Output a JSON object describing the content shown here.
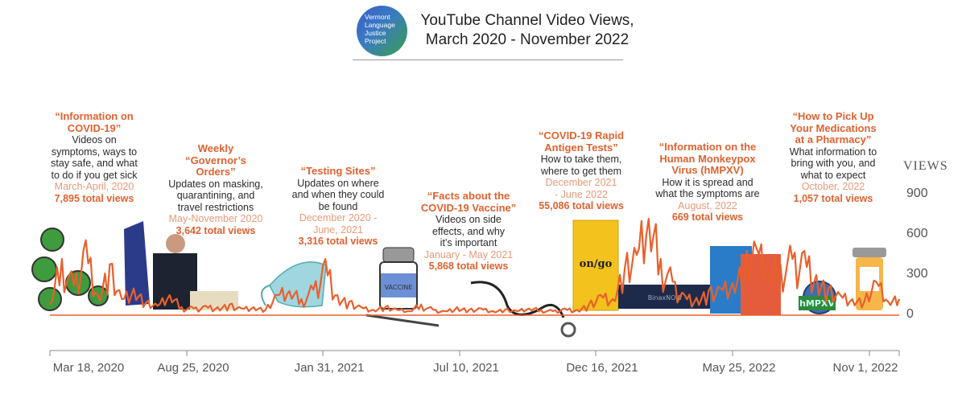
{
  "header": {
    "logo_text": "Vermont Language Justice Project",
    "title_line1": "YouTube Channel Video Views,",
    "title_line2": "March 2020 - November 2022"
  },
  "annotations": [
    {
      "title": "“Information on COVID-19”",
      "body": "Videos on symptoms, ways to stay safe, and what to do if you get sick",
      "dates": "March-April, 2020",
      "views": "7,895 total views"
    },
    {
      "title": "Weekly “Governor’s Orders”",
      "body": "Updates on masking, quarantining, and travel restrictions",
      "dates": "May-November 2020",
      "views": "3,642 total views"
    },
    {
      "title": "“Testing Sites”",
      "body": "Updates on where and when they could be found",
      "dates": "December 2020 - June, 2021",
      "views": "3,316 total views"
    },
    {
      "title": "“Facts about the COVID-19 Vaccine”",
      "body": "Videos on side effects, and why it’s important",
      "dates": "January - May 2021",
      "views": "5,868 total views"
    },
    {
      "title": "“COVID-19 Rapid Antigen Tests”",
      "body": "How to take them, where to get them",
      "dates": "December 2021 - June 2022",
      "views": "55,086 total views"
    },
    {
      "title": "“Information on the Human Monkeypox Virus (hMPXV)",
      "body": "How it is spread and what the symptoms are",
      "dates": "August, 2022",
      "views": "669 total views"
    },
    {
      "title": "“How to Pick Up Your Medications at a Pharmacy”",
      "body": "What information to bring with you, and what to expect",
      "dates": "October, 2022",
      "views": "1,057 total views"
    }
  ],
  "illustration_labels": {
    "vaccine": "VACCINE",
    "ongo": "on/go",
    "binax": "BinaxNOW",
    "hmpxv": "hMPXV"
  },
  "colors": {
    "line": "#e8602c",
    "accent": "#e0622f",
    "dates": "#e89a78",
    "axis": "#888888"
  },
  "chart_data": {
    "type": "line",
    "title": "YouTube Channel Video Views, March 2020 - November 2022",
    "ylabel": "VIEWS",
    "ylim": [
      0,
      900
    ],
    "yticks": [
      "0",
      "300",
      "600",
      "900"
    ],
    "xticks": [
      "Mar 18, 2020",
      "Aug 25, 2020",
      "Jan 31, 2021",
      "Jul 10, 2021",
      "Dec 16, 2021",
      "May 25, 2022",
      "Nov 1, 2022"
    ],
    "xtick_dates": [
      "2020-03-18",
      "2020-08-25",
      "2021-01-31",
      "2021-07-10",
      "2021-12-16",
      "2022-05-25",
      "2022-11-01"
    ],
    "grid": false,
    "x": [
      "2020-03-18",
      "2020-04-01",
      "2020-04-15",
      "2020-04-29",
      "2020-05-13",
      "2020-05-27",
      "2020-06-10",
      "2020-06-24",
      "2020-07-08",
      "2020-07-22",
      "2020-08-05",
      "2020-08-19",
      "2020-09-02",
      "2020-09-16",
      "2020-09-30",
      "2020-10-14",
      "2020-10-28",
      "2020-11-11",
      "2020-11-25",
      "2020-12-09",
      "2020-12-23",
      "2021-01-06",
      "2021-01-20",
      "2021-02-03",
      "2021-02-17",
      "2021-03-03",
      "2021-03-17",
      "2021-03-31",
      "2021-04-14",
      "2021-04-28",
      "2021-05-12",
      "2021-05-26",
      "2021-06-09",
      "2021-06-23",
      "2021-07-07",
      "2021-07-21",
      "2021-08-04",
      "2021-08-18",
      "2021-09-01",
      "2021-09-15",
      "2021-09-29",
      "2021-10-13",
      "2021-10-27",
      "2021-11-10",
      "2021-11-24",
      "2021-12-08",
      "2021-12-22",
      "2022-01-05",
      "2022-01-19",
      "2022-02-02",
      "2022-02-16",
      "2022-03-02",
      "2022-03-16",
      "2022-03-30",
      "2022-04-13",
      "2022-04-27",
      "2022-05-11",
      "2022-05-25",
      "2022-06-08",
      "2022-06-22",
      "2022-07-06",
      "2022-07-20",
      "2022-08-03",
      "2022-08-17",
      "2022-08-31",
      "2022-09-14",
      "2022-09-28",
      "2022-10-12",
      "2022-10-26",
      "2022-11-09",
      "2022-11-23",
      "2022-12-06"
    ],
    "y": [
      80,
      420,
      220,
      560,
      150,
      380,
      120,
      200,
      90,
      70,
      150,
      60,
      50,
      70,
      60,
      80,
      50,
      60,
      40,
      150,
      180,
      120,
      190,
      420,
      150,
      100,
      60,
      40,
      60,
      40,
      30,
      80,
      40,
      30,
      60,
      40,
      50,
      30,
      40,
      30,
      50,
      40,
      30,
      50,
      40,
      80,
      150,
      120,
      350,
      450,
      720,
      420,
      250,
      150,
      130,
      180,
      200,
      240,
      350,
      500,
      300,
      380,
      420,
      480,
      300,
      200,
      150,
      120,
      100,
      250,
      100,
      120
    ]
  }
}
